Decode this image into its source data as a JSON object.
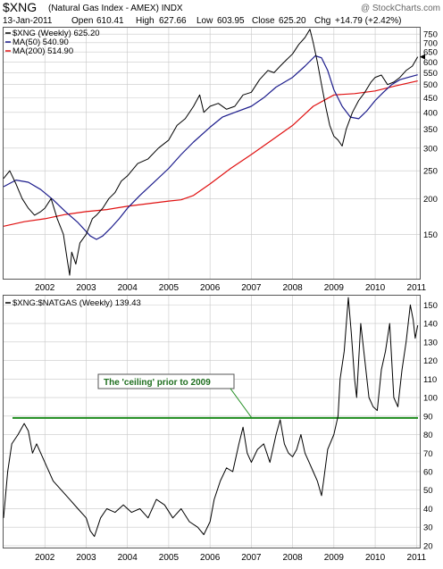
{
  "header": {
    "symbol": "$XNG",
    "name": "(Natural Gas Index - AMEX) INDX",
    "watermark": "@ StockCharts.com",
    "date": "13-Jan-2011",
    "open_label": "Open",
    "open": "610.41",
    "high_label": "High",
    "high": "627.66",
    "low_label": "Low",
    "low": "603.95",
    "close_label": "Close",
    "close": "625.20",
    "chg_label": "Chg",
    "chg": "+14.79 (+2.42%)"
  },
  "legend": {
    "main": "$XNG (Weekly) 625.20",
    "ma50": "MA(50) 540.90",
    "ma200": "MA(200) 514.90",
    "ratio": "$XNG:$NATGAS (Weekly) 139.43"
  },
  "annotation": {
    "text": "The 'ceiling' prior to 2009",
    "ceiling_value": 89
  },
  "colors": {
    "price": "#000000",
    "ma50": "#1c1c8c",
    "ma200": "#e01010",
    "ceiling": "#1e8c1e",
    "grid": "#c8c8c8",
    "annotation_text": "#1e6e1e"
  },
  "chart_data": [
    {
      "type": "line",
      "title": "$XNG (Natural Gas Index - AMEX) INDX",
      "scale": "log",
      "ylim": [
        105,
        790
      ],
      "y_ticks": [
        150,
        200,
        250,
        300,
        350,
        400,
        450,
        500,
        550,
        600,
        650,
        700,
        750
      ],
      "x_ticks": [
        "2002",
        "2003",
        "2004",
        "2005",
        "2006",
        "2007",
        "2008",
        "2009",
        "2010",
        "2011"
      ],
      "grid": true,
      "legend_position": "top-left",
      "series": [
        {
          "name": "$XNG (Weekly) 625.20",
          "x": [
            2001.0,
            2001.15,
            2001.3,
            2001.45,
            2001.6,
            2001.75,
            2001.9,
            2002.0,
            2002.15,
            2002.3,
            2002.45,
            2002.55,
            2002.6,
            2002.65,
            2002.75,
            2002.85,
            2003.0,
            2003.15,
            2003.25,
            2003.4,
            2003.55,
            2003.7,
            2003.85,
            2004.0,
            2004.25,
            2004.5,
            2004.75,
            2005.0,
            2005.2,
            2005.4,
            2005.6,
            2005.75,
            2005.85,
            2006.0,
            2006.2,
            2006.4,
            2006.6,
            2006.8,
            2007.0,
            2007.2,
            2007.4,
            2007.55,
            2007.7,
            2007.85,
            2008.0,
            2008.15,
            2008.3,
            2008.42,
            2008.5,
            2008.6,
            2008.7,
            2008.8,
            2008.9,
            2009.0,
            2009.1,
            2009.2,
            2009.3,
            2009.45,
            2009.6,
            2009.75,
            2009.9,
            2010.0,
            2010.15,
            2010.3,
            2010.45,
            2010.6,
            2010.75,
            2010.9,
            2011.03
          ],
          "values": [
            235,
            250,
            225,
            200,
            185,
            175,
            180,
            185,
            200,
            170,
            150,
            120,
            108,
            130,
            118,
            140,
            150,
            170,
            175,
            185,
            200,
            210,
            230,
            240,
            265,
            275,
            300,
            320,
            360,
            380,
            420,
            460,
            400,
            420,
            430,
            410,
            420,
            460,
            470,
            520,
            560,
            550,
            580,
            610,
            640,
            690,
            730,
            780,
            700,
            600,
            500,
            420,
            360,
            330,
            320,
            305,
            350,
            400,
            440,
            470,
            510,
            530,
            540,
            500,
            510,
            530,
            560,
            580,
            625
          ]
        },
        {
          "name": "MA(50) 540.90",
          "x": [
            2001.0,
            2001.3,
            2001.6,
            2001.9,
            2002.2,
            2002.5,
            2002.8,
            2003.1,
            2003.25,
            2003.4,
            2003.6,
            2003.8,
            2004.0,
            2004.3,
            2004.6,
            2005.0,
            2005.3,
            2005.6,
            2006.0,
            2006.3,
            2006.6,
            2007.0,
            2007.3,
            2007.6,
            2008.0,
            2008.3,
            2008.55,
            2008.7,
            2008.85,
            2009.0,
            2009.2,
            2009.4,
            2009.6,
            2009.8,
            2010.0,
            2010.2,
            2010.4,
            2010.6,
            2010.8,
            2011.03
          ],
          "values": [
            220,
            232,
            228,
            215,
            198,
            180,
            165,
            148,
            144,
            148,
            158,
            170,
            185,
            205,
            225,
            255,
            285,
            315,
            355,
            385,
            400,
            420,
            450,
            490,
            530,
            580,
            630,
            620,
            560,
            480,
            420,
            385,
            380,
            405,
            440,
            470,
            500,
            520,
            530,
            541
          ]
        },
        {
          "name": "MA(200) 514.90",
          "x": [
            2001.0,
            2001.5,
            2002.0,
            2002.5,
            2003.0,
            2003.5,
            2004.0,
            2004.5,
            2005.0,
            2005.3,
            2005.6,
            2006.0,
            2006.5,
            2007.0,
            2007.5,
            2008.0,
            2008.5,
            2009.0,
            2009.5,
            2010.0,
            2010.5,
            2011.03
          ],
          "values": [
            160,
            166,
            170,
            176,
            180,
            183,
            188,
            192,
            196,
            198,
            205,
            225,
            255,
            285,
            320,
            360,
            420,
            460,
            465,
            475,
            495,
            515
          ]
        }
      ]
    },
    {
      "type": "line",
      "title": "$XNG:$NATGAS (Weekly) 139.43",
      "ylim": [
        19,
        155
      ],
      "y_ticks": [
        20,
        30,
        40,
        50,
        60,
        70,
        80,
        90,
        100,
        110,
        120,
        130,
        140,
        150
      ],
      "x_ticks": [
        "2002",
        "2003",
        "2004",
        "2005",
        "2006",
        "2007",
        "2008",
        "2009",
        "2010",
        "2011"
      ],
      "grid": true,
      "legend_position": "top-left",
      "series": [
        {
          "name": "$XNG:$NATGAS (Weekly) 139.43",
          "x": [
            2001.0,
            2001.1,
            2001.2,
            2001.35,
            2001.5,
            2001.6,
            2001.7,
            2001.8,
            2002.0,
            2002.2,
            2002.4,
            2002.6,
            2002.8,
            2003.0,
            2003.1,
            2003.2,
            2003.35,
            2003.5,
            2003.7,
            2003.9,
            2004.1,
            2004.3,
            2004.5,
            2004.7,
            2004.9,
            2005.1,
            2005.3,
            2005.5,
            2005.7,
            2005.85,
            2006.0,
            2006.1,
            2006.25,
            2006.4,
            2006.55,
            2006.7,
            2006.8,
            2006.9,
            2007.0,
            2007.15,
            2007.3,
            2007.45,
            2007.6,
            2007.7,
            2007.8,
            2007.9,
            2008.0,
            2008.1,
            2008.2,
            2008.3,
            2008.4,
            2008.5,
            2008.6,
            2008.7,
            2008.75,
            2008.85,
            2009.0,
            2009.1,
            2009.15,
            2009.25,
            2009.35,
            2009.42,
            2009.5,
            2009.55,
            2009.65,
            2009.75,
            2009.85,
            2009.95,
            2010.05,
            2010.15,
            2010.25,
            2010.35,
            2010.45,
            2010.55,
            2010.65,
            2010.75,
            2010.85,
            2010.92,
            2010.97,
            2011.03
          ],
          "values": [
            35,
            60,
            75,
            80,
            86,
            82,
            70,
            75,
            65,
            55,
            50,
            45,
            40,
            35,
            28,
            25,
            35,
            40,
            38,
            42,
            38,
            40,
            35,
            45,
            42,
            35,
            40,
            33,
            30,
            26,
            33,
            45,
            55,
            62,
            60,
            75,
            84,
            70,
            65,
            72,
            75,
            65,
            80,
            88,
            75,
            70,
            68,
            72,
            80,
            70,
            65,
            60,
            55,
            47,
            55,
            72,
            80,
            90,
            110,
            125,
            154,
            135,
            110,
            100,
            140,
            120,
            100,
            95,
            93,
            115,
            125,
            140,
            100,
            95,
            115,
            130,
            150,
            142,
            132,
            139
          ]
        }
      ]
    }
  ]
}
